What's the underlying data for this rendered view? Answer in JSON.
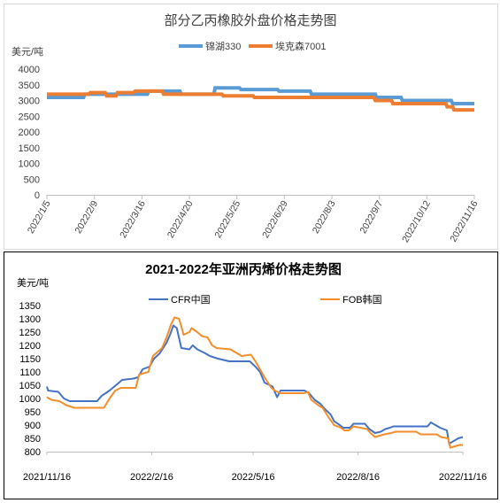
{
  "chart_data": [
    {
      "type": "line",
      "title": "部分乙丙橡胶外盘价格走势图",
      "ylabel": "美元/吨",
      "ylim": [
        0,
        4000
      ],
      "yticks": [
        0,
        500,
        1000,
        1500,
        2000,
        2500,
        3000,
        3500,
        4000
      ],
      "x_tick_labels": [
        "2022/1/5",
        "2022/2/9",
        "2022/3/16",
        "2022/4/20",
        "2022/5/25",
        "2022/6/29",
        "2022/8/3",
        "2022/9/7",
        "2022/10/12",
        "2022/11/16"
      ],
      "legend_position": "top-center",
      "grid": false,
      "series": [
        {
          "name": "锦湖330",
          "color": "#5b9bd5",
          "points": [
            [
              "2022/1/5",
              3100
            ],
            [
              "2022/2/1",
              3100
            ],
            [
              "2022/2/2",
              3200
            ],
            [
              "2022/3/20",
              3200
            ],
            [
              "2022/3/21",
              3300
            ],
            [
              "2022/4/13",
              3300
            ],
            [
              "2022/4/14",
              3200
            ],
            [
              "2022/5/8",
              3200
            ],
            [
              "2022/5/9",
              3400
            ],
            [
              "2022/5/27",
              3400
            ],
            [
              "2022/5/28",
              3350
            ],
            [
              "2022/6/24",
              3350
            ],
            [
              "2022/6/25",
              3300
            ],
            [
              "2022/7/18",
              3300
            ],
            [
              "2022/7/19",
              3200
            ],
            [
              "2022/9/4",
              3200
            ],
            [
              "2022/9/5",
              3100
            ],
            [
              "2022/9/23",
              3100
            ],
            [
              "2022/9/24",
              3000
            ],
            [
              "2022/10/30",
              3000
            ],
            [
              "2022/10/31",
              2900
            ],
            [
              "2022/11/16",
              2900
            ]
          ]
        },
        {
          "name": "埃克森7001",
          "color": "#ed7d31",
          "points": [
            [
              "2022/1/5",
              3200
            ],
            [
              "2022/2/5",
              3200
            ],
            [
              "2022/2/6",
              3250
            ],
            [
              "2022/2/17",
              3250
            ],
            [
              "2022/2/18",
              3150
            ],
            [
              "2022/2/25",
              3150
            ],
            [
              "2022/2/26",
              3250
            ],
            [
              "2022/3/10",
              3250
            ],
            [
              "2022/3/11",
              3300
            ],
            [
              "2022/3/31",
              3300
            ],
            [
              "2022/4/1",
              3200
            ],
            [
              "2022/5/14",
              3200
            ],
            [
              "2022/5/15",
              3150
            ],
            [
              "2022/6/6",
              3150
            ],
            [
              "2022/6/7",
              3100
            ],
            [
              "2022/9/3",
              3100
            ],
            [
              "2022/9/4",
              3000
            ],
            [
              "2022/9/16",
              3000
            ],
            [
              "2022/9/17",
              2900
            ],
            [
              "2022/10/26",
              2900
            ],
            [
              "2022/10/27",
              2800
            ],
            [
              "2022/10/31",
              2800
            ],
            [
              "2022/11/1",
              2700
            ],
            [
              "2022/11/16",
              2700
            ]
          ]
        }
      ]
    },
    {
      "type": "line",
      "title": "2021-2022年亚洲丙烯价格走势图",
      "ylabel": "美元/吨",
      "ylim": [
        800,
        1350
      ],
      "yticks": [
        800,
        850,
        900,
        950,
        1000,
        1050,
        1100,
        1150,
        1200,
        1250,
        1300,
        1350
      ],
      "x_tick_labels": [
        "2021/11/16",
        "2022/2/16",
        "2022/5/16",
        "2022/8/16",
        "2022/11/16"
      ],
      "legend_position": "top",
      "grid": false,
      "series": [
        {
          "name": "CFR中国",
          "color": "#4472c4",
          "points": [
            [
              "2021/11/16",
              1045
            ],
            [
              "2021/11/17",
              1030
            ],
            [
              "2021/11/26",
              1025
            ],
            [
              "2021/11/29",
              1010
            ],
            [
              "2021/12/1",
              1000
            ],
            [
              "2021/12/6",
              990
            ],
            [
              "2021/12/30",
              990
            ],
            [
              "2022/1/3",
              1010
            ],
            [
              "2022/1/10",
              1030
            ],
            [
              "2022/1/17",
              1055
            ],
            [
              "2022/1/21",
              1070
            ],
            [
              "2022/1/31",
              1075
            ],
            [
              "2022/2/4",
              1080
            ],
            [
              "2022/2/8",
              1110
            ],
            [
              "2022/2/14",
              1120
            ],
            [
              "2022/2/18",
              1150
            ],
            [
              "2022/2/23",
              1170
            ],
            [
              "2022/3/1",
              1210
            ],
            [
              "2022/3/4",
              1240
            ],
            [
              "2022/3/7",
              1275
            ],
            [
              "2022/3/10",
              1265
            ],
            [
              "2022/3/14",
              1190
            ],
            [
              "2022/3/21",
              1185
            ],
            [
              "2022/3/24",
              1200
            ],
            [
              "2022/3/28",
              1185
            ],
            [
              "2022/4/4",
              1170
            ],
            [
              "2022/4/8",
              1160
            ],
            [
              "2022/4/15",
              1150
            ],
            [
              "2022/4/25",
              1140
            ],
            [
              "2022/5/13",
              1140
            ],
            [
              "2022/5/18",
              1120
            ],
            [
              "2022/5/22",
              1100
            ],
            [
              "2022/5/26",
              1060
            ],
            [
              "2022/6/2",
              1045
            ],
            [
              "2022/6/6",
              1005
            ],
            [
              "2022/6/9",
              1030
            ],
            [
              "2022/6/30",
              1030
            ],
            [
              "2022/7/4",
              1020
            ],
            [
              "2022/7/9",
              995
            ],
            [
              "2022/7/14",
              980
            ],
            [
              "2022/7/18",
              960
            ],
            [
              "2022/7/23",
              940
            ],
            [
              "2022/7/26",
              915
            ],
            [
              "2022/7/31",
              900
            ],
            [
              "2022/8/3",
              890
            ],
            [
              "2022/8/9",
              890
            ],
            [
              "2022/8/12",
              905
            ],
            [
              "2022/8/22",
              905
            ],
            [
              "2022/8/26",
              885
            ],
            [
              "2022/8/31",
              870
            ],
            [
              "2022/9/5",
              875
            ],
            [
              "2022/9/9",
              885
            ],
            [
              "2022/9/13",
              890
            ],
            [
              "2022/9/16",
              895
            ],
            [
              "2022/10/16",
              895
            ],
            [
              "2022/10/19",
              910
            ],
            [
              "2022/10/23",
              900
            ],
            [
              "2022/10/27",
              890
            ],
            [
              "2022/11/2",
              880
            ],
            [
              "2022/11/4",
              830
            ],
            [
              "2022/11/8",
              840
            ],
            [
              "2022/11/12",
              850
            ],
            [
              "2022/11/16",
              855
            ]
          ]
        },
        {
          "name": "FOB韩国",
          "color": "#f28e2b",
          "points": [
            [
              "2021/11/16",
              1005
            ],
            [
              "2021/11/20",
              995
            ],
            [
              "2021/11/27",
              990
            ],
            [
              "2021/12/3",
              975
            ],
            [
              "2021/12/10",
              965
            ],
            [
              "2022/1/5",
              965
            ],
            [
              "2022/1/10",
              1000
            ],
            [
              "2022/1/15",
              1030
            ],
            [
              "2022/1/20",
              1040
            ],
            [
              "2022/2/2",
              1040
            ],
            [
              "2022/2/5",
              1090
            ],
            [
              "2022/2/13",
              1100
            ],
            [
              "2022/2/17",
              1160
            ],
            [
              "2022/2/21",
              1175
            ],
            [
              "2022/2/25",
              1190
            ],
            [
              "2022/3/1",
              1230
            ],
            [
              "2022/3/5",
              1280
            ],
            [
              "2022/3/8",
              1305
            ],
            [
              "2022/3/12",
              1300
            ],
            [
              "2022/3/16",
              1240
            ],
            [
              "2022/3/21",
              1250
            ],
            [
              "2022/3/23",
              1265
            ],
            [
              "2022/3/28",
              1250
            ],
            [
              "2022/4/1",
              1235
            ],
            [
              "2022/4/6",
              1230
            ],
            [
              "2022/4/10",
              1200
            ],
            [
              "2022/4/14",
              1190
            ],
            [
              "2022/4/26",
              1185
            ],
            [
              "2022/4/30",
              1175
            ],
            [
              "2022/5/6",
              1160
            ],
            [
              "2022/5/14",
              1165
            ],
            [
              "2022/5/18",
              1140
            ],
            [
              "2022/5/22",
              1110
            ],
            [
              "2022/5/26",
              1080
            ],
            [
              "2022/6/1",
              1040
            ],
            [
              "2022/6/4",
              1030
            ],
            [
              "2022/6/9",
              1020
            ],
            [
              "2022/6/30",
              1020
            ],
            [
              "2022/7/3",
              1025
            ],
            [
              "2022/7/6",
              995
            ],
            [
              "2022/7/12",
              975
            ],
            [
              "2022/7/16",
              965
            ],
            [
              "2022/7/21",
              930
            ],
            [
              "2022/7/26",
              900
            ],
            [
              "2022/8/1",
              890
            ],
            [
              "2022/8/4",
              880
            ],
            [
              "2022/8/8",
              880
            ],
            [
              "2022/8/12",
              895
            ],
            [
              "2022/8/24",
              885
            ],
            [
              "2022/8/27",
              870
            ],
            [
              "2022/8/31",
              855
            ],
            [
              "2022/9/4",
              860
            ],
            [
              "2022/9/8",
              865
            ],
            [
              "2022/9/14",
              870
            ],
            [
              "2022/9/18",
              875
            ],
            [
              "2022/10/6",
              875
            ],
            [
              "2022/10/10",
              865
            ],
            [
              "2022/10/24",
              865
            ],
            [
              "2022/10/28",
              855
            ],
            [
              "2022/11/3",
              850
            ],
            [
              "2022/11/5",
              815
            ],
            [
              "2022/11/9",
              820
            ],
            [
              "2022/11/13",
              825
            ],
            [
              "2022/11/16",
              825
            ]
          ]
        }
      ]
    }
  ]
}
